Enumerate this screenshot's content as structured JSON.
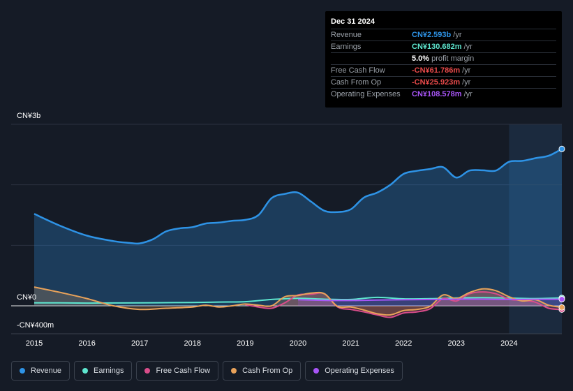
{
  "tooltip": {
    "date": "Dec 31 2024",
    "rows": [
      {
        "label": "Revenue",
        "value": "CN¥2.593b",
        "unit": "/yr",
        "color": "#2e93e6"
      },
      {
        "label": "Earnings",
        "value": "CN¥130.682m",
        "unit": "/yr",
        "color": "#5ee6cf"
      },
      {
        "label": "",
        "value": "5.0%",
        "unit": "profit margin",
        "color": "#ffffff"
      },
      {
        "label": "Free Cash Flow",
        "value": "-CN¥61.786m",
        "unit": "/yr",
        "color": "#e84a4a"
      },
      {
        "label": "Cash From Op",
        "value": "-CN¥25.923m",
        "unit": "/yr",
        "color": "#e84a4a"
      },
      {
        "label": "Operating Expenses",
        "value": "CN¥108.578m",
        "unit": "/yr",
        "color": "#a855f7"
      }
    ]
  },
  "legend": [
    {
      "label": "Revenue",
      "color": "#2e93e6"
    },
    {
      "label": "Earnings",
      "color": "#5ee6cf"
    },
    {
      "label": "Free Cash Flow",
      "color": "#d94d8a"
    },
    {
      "label": "Cash From Op",
      "color": "#e8a25a"
    },
    {
      "label": "Operating Expenses",
      "color": "#a855f7"
    }
  ],
  "chart_data": {
    "type": "area",
    "title": "",
    "y_tick_labels": {
      "top": "CN¥3b",
      "zero": "CN¥0",
      "bottom": "-CN¥400m"
    },
    "ylim": [
      -400,
      3000
    ],
    "xlim": [
      2015.0,
      2025.0
    ],
    "x_ticks": [
      2015,
      2016,
      2017,
      2018,
      2019,
      2020,
      2021,
      2022,
      2023,
      2024
    ],
    "x_tick_labels": [
      "2015",
      "2016",
      "2017",
      "2018",
      "2019",
      "2020",
      "2021",
      "2022",
      "2023",
      "2024"
    ],
    "forecast_shade_start": 2024.0,
    "units": "CN¥ millions",
    "series": [
      {
        "name": "Revenue",
        "color": "#2e93e6",
        "fill": true,
        "points": [
          [
            2015.0,
            1520
          ],
          [
            2015.5,
            1320
          ],
          [
            2016.0,
            1160
          ],
          [
            2016.5,
            1070
          ],
          [
            2016.8,
            1040
          ],
          [
            2017.0,
            1032
          ],
          [
            2017.25,
            1100
          ],
          [
            2017.5,
            1230
          ],
          [
            2017.75,
            1280
          ],
          [
            2018.0,
            1300
          ],
          [
            2018.25,
            1360
          ],
          [
            2018.5,
            1375
          ],
          [
            2018.75,
            1405
          ],
          [
            2019.0,
            1420
          ],
          [
            2019.25,
            1500
          ],
          [
            2019.5,
            1780
          ],
          [
            2019.75,
            1850
          ],
          [
            2020.0,
            1870
          ],
          [
            2020.25,
            1720
          ],
          [
            2020.5,
            1570
          ],
          [
            2020.75,
            1550
          ],
          [
            2021.0,
            1595
          ],
          [
            2021.25,
            1790
          ],
          [
            2021.5,
            1870
          ],
          [
            2021.75,
            2000
          ],
          [
            2022.0,
            2180
          ],
          [
            2022.25,
            2230
          ],
          [
            2022.5,
            2260
          ],
          [
            2022.75,
            2290
          ],
          [
            2023.0,
            2120
          ],
          [
            2023.25,
            2235
          ],
          [
            2023.5,
            2240
          ],
          [
            2023.75,
            2235
          ],
          [
            2024.0,
            2380
          ],
          [
            2024.25,
            2395
          ],
          [
            2024.5,
            2440
          ],
          [
            2024.75,
            2480
          ],
          [
            2025.0,
            2593
          ]
        ]
      },
      {
        "name": "Earnings",
        "color": "#5ee6cf",
        "fill": false,
        "points": [
          [
            2015.0,
            50
          ],
          [
            2015.5,
            48
          ],
          [
            2016.0,
            45
          ],
          [
            2016.5,
            47
          ],
          [
            2017.0,
            48
          ],
          [
            2017.5,
            52
          ],
          [
            2018.0,
            55
          ],
          [
            2018.5,
            62
          ],
          [
            2019.0,
            68
          ],
          [
            2019.5,
            105
          ],
          [
            2020.0,
            125
          ],
          [
            2020.5,
            110
          ],
          [
            2021.0,
            105
          ],
          [
            2021.5,
            140
          ],
          [
            2022.0,
            115
          ],
          [
            2022.5,
            118
          ],
          [
            2023.0,
            130
          ],
          [
            2023.5,
            135
          ],
          [
            2024.0,
            128
          ],
          [
            2024.5,
            120
          ],
          [
            2025.0,
            131
          ]
        ]
      },
      {
        "name": "Free Cash Flow",
        "color": "#d94d8a",
        "fill": true,
        "points": [
          [
            2019.0,
            20
          ],
          [
            2019.25,
            -20
          ],
          [
            2019.5,
            -40
          ],
          [
            2019.75,
            50
          ],
          [
            2020.0,
            180
          ],
          [
            2020.25,
            190
          ],
          [
            2020.5,
            200
          ],
          [
            2020.75,
            -20
          ],
          [
            2021.0,
            -60
          ],
          [
            2021.25,
            -100
          ],
          [
            2021.5,
            -150
          ],
          [
            2021.75,
            -190
          ],
          [
            2022.0,
            -120
          ],
          [
            2022.25,
            -100
          ],
          [
            2022.5,
            -50
          ],
          [
            2022.75,
            120
          ],
          [
            2023.0,
            80
          ],
          [
            2023.25,
            200
          ],
          [
            2023.5,
            230
          ],
          [
            2023.75,
            200
          ],
          [
            2024.0,
            110
          ],
          [
            2024.25,
            90
          ],
          [
            2024.5,
            60
          ],
          [
            2024.75,
            -40
          ],
          [
            2025.0,
            -62
          ]
        ]
      },
      {
        "name": "Cash From Op",
        "color": "#e8a25a",
        "fill": true,
        "points": [
          [
            2015.0,
            310
          ],
          [
            2015.5,
            220
          ],
          [
            2016.0,
            120
          ],
          [
            2016.5,
            0
          ],
          [
            2017.0,
            -60
          ],
          [
            2017.5,
            -40
          ],
          [
            2018.0,
            -20
          ],
          [
            2018.25,
            10
          ],
          [
            2018.5,
            -20
          ],
          [
            2018.75,
            0
          ],
          [
            2019.0,
            30
          ],
          [
            2019.25,
            10
          ],
          [
            2019.5,
            0
          ],
          [
            2019.75,
            150
          ],
          [
            2020.0,
            170
          ],
          [
            2020.25,
            210
          ],
          [
            2020.5,
            200
          ],
          [
            2020.75,
            -10
          ],
          [
            2021.0,
            -20
          ],
          [
            2021.25,
            -70
          ],
          [
            2021.5,
            -130
          ],
          [
            2021.75,
            -150
          ],
          [
            2022.0,
            -80
          ],
          [
            2022.25,
            -60
          ],
          [
            2022.5,
            -10
          ],
          [
            2022.75,
            180
          ],
          [
            2023.0,
            120
          ],
          [
            2023.25,
            220
          ],
          [
            2023.5,
            280
          ],
          [
            2023.75,
            250
          ],
          [
            2024.0,
            150
          ],
          [
            2024.25,
            80
          ],
          [
            2024.5,
            100
          ],
          [
            2024.75,
            10
          ],
          [
            2025.0,
            -26
          ]
        ]
      },
      {
        "name": "Operating Expenses",
        "color": "#a855f7",
        "fill": true,
        "points": [
          [
            2020.0,
            100
          ],
          [
            2020.5,
            90
          ],
          [
            2021.0,
            88
          ],
          [
            2021.5,
            95
          ],
          [
            2022.0,
            100
          ],
          [
            2022.5,
            105
          ],
          [
            2023.0,
            108
          ],
          [
            2023.5,
            110
          ],
          [
            2024.0,
            105
          ],
          [
            2024.5,
            108
          ],
          [
            2025.0,
            109
          ]
        ]
      }
    ]
  }
}
